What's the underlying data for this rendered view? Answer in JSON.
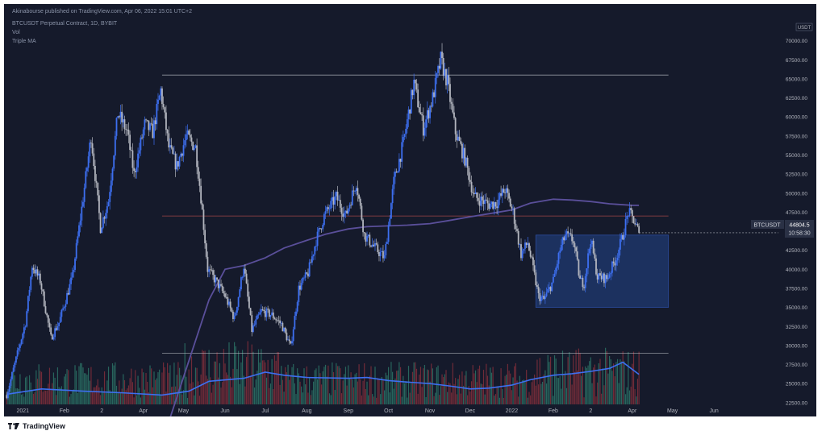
{
  "header": {
    "publisher_text": "Akinabourse published on TradingView.com, Apr 06, 2022 15:01 UTC+2",
    "symbol_line": "BTCUSDT Perpetual Contract, 1D, BYBIT",
    "indicators": [
      "Vol",
      "Triple MA"
    ]
  },
  "footer": {
    "brand": "TradingView"
  },
  "price_scale": {
    "currency": "USDT"
  },
  "price_label": {
    "symbol": "BTCUSDT",
    "price": "44804.5",
    "countdown": "10:58:30"
  },
  "colors": {
    "background": "#151a2b",
    "up_candle": "#3d6ff0",
    "down_candle": "#b2b5be",
    "ma": "#5a4f9a",
    "volume_ma": "#3d6ff0",
    "box": "#1f3a72",
    "levels": "#b2b5be",
    "resistance": "#c0504d",
    "volume_up": "#2a6e63",
    "volume_down": "#7a2e3a"
  },
  "chart_data": {
    "type": "candlestick",
    "symbol": "BTCUSDT",
    "timeframe": "1D",
    "ylim": [
      21000,
      72500
    ],
    "xlim": [
      "2020-12-18",
      "2022-06-25"
    ],
    "y_ticks": [
      "22500.00",
      "25000.00",
      "27500.00",
      "30000.00",
      "32500.00",
      "35000.00",
      "37500.00",
      "40000.00",
      "42500.00",
      "45000.00",
      "47500.00",
      "50000.00",
      "52500.00",
      "55000.00",
      "57500.00",
      "60000.00",
      "62500.00",
      "65000.00",
      "67500.00",
      "70000.00"
    ],
    "x_ticks": [
      {
        "label": "2021",
        "date": "2021-01-01"
      },
      {
        "label": "Feb",
        "date": "2021-02-01"
      },
      {
        "label": "2",
        "date": "2021-03-01"
      },
      {
        "label": "Apr",
        "date": "2021-04-01"
      },
      {
        "label": "May",
        "date": "2021-05-01"
      },
      {
        "label": "Jun",
        "date": "2021-06-01"
      },
      {
        "label": "Jul",
        "date": "2021-07-01"
      },
      {
        "label": "Aug",
        "date": "2021-08-01"
      },
      {
        "label": "Sep",
        "date": "2021-09-01"
      },
      {
        "label": "Oct",
        "date": "2021-10-01"
      },
      {
        "label": "Nov",
        "date": "2021-11-01"
      },
      {
        "label": "Dec",
        "date": "2021-12-01"
      },
      {
        "label": "2022",
        "date": "2022-01-01"
      },
      {
        "label": "Feb",
        "date": "2022-02-01"
      },
      {
        "label": "2",
        "date": "2022-03-01"
      },
      {
        "label": "Apr",
        "date": "2022-04-01"
      },
      {
        "label": "May",
        "date": "2022-05-01"
      },
      {
        "label": "Jun",
        "date": "2022-06-01"
      }
    ],
    "close_path": [
      [
        "2020-12-20",
        23500
      ],
      [
        "2021-01-03",
        33000
      ],
      [
        "2021-01-08",
        40500
      ],
      [
        "2021-01-14",
        38500
      ],
      [
        "2021-01-22",
        31000
      ],
      [
        "2021-01-28",
        33000
      ],
      [
        "2021-02-07",
        39000
      ],
      [
        "2021-02-14",
        48000
      ],
      [
        "2021-02-21",
        57500
      ],
      [
        "2021-02-28",
        45500
      ],
      [
        "2021-03-06",
        49000
      ],
      [
        "2021-03-13",
        60500
      ],
      [
        "2021-03-20",
        58000
      ],
      [
        "2021-03-25",
        52500
      ],
      [
        "2021-04-02",
        59000
      ],
      [
        "2021-04-08",
        58000
      ],
      [
        "2021-04-14",
        63500
      ],
      [
        "2021-04-20",
        56000
      ],
      [
        "2021-04-26",
        53500
      ],
      [
        "2021-05-03",
        57500
      ],
      [
        "2021-05-10",
        56000
      ],
      [
        "2021-05-14",
        49500
      ],
      [
        "2021-05-19",
        40000
      ],
      [
        "2021-05-25",
        38500
      ],
      [
        "2021-06-01",
        36500
      ],
      [
        "2021-06-08",
        33500
      ],
      [
        "2021-06-15",
        40500
      ],
      [
        "2021-06-21",
        32000
      ],
      [
        "2021-06-28",
        34500
      ],
      [
        "2021-07-06",
        34000
      ],
      [
        "2021-07-13",
        32800
      ],
      [
        "2021-07-20",
        29800
      ],
      [
        "2021-07-26",
        37500
      ],
      [
        "2021-08-02",
        39500
      ],
      [
        "2021-08-08",
        43800
      ],
      [
        "2021-08-14",
        47000
      ],
      [
        "2021-08-23",
        49500
      ],
      [
        "2021-08-30",
        47000
      ],
      [
        "2021-09-07",
        51500
      ],
      [
        "2021-09-13",
        44500
      ],
      [
        "2021-09-21",
        42800
      ],
      [
        "2021-09-28",
        41500
      ],
      [
        "2021-10-05",
        51500
      ],
      [
        "2021-10-12",
        56500
      ],
      [
        "2021-10-20",
        64500
      ],
      [
        "2021-10-27",
        58500
      ],
      [
        "2021-11-03",
        62500
      ],
      [
        "2021-11-09",
        67500
      ],
      [
        "2021-11-14",
        64500
      ],
      [
        "2021-11-20",
        58000
      ],
      [
        "2021-11-27",
        54500
      ],
      [
        "2021-12-04",
        49500
      ],
      [
        "2021-12-10",
        49000
      ],
      [
        "2021-12-15",
        48500
      ],
      [
        "2021-12-21",
        48800
      ],
      [
        "2021-12-27",
        50500
      ],
      [
        "2022-01-02",
        47500
      ],
      [
        "2022-01-08",
        42000
      ],
      [
        "2022-01-13",
        43500
      ],
      [
        "2022-01-21",
        36500
      ],
      [
        "2022-01-25",
        36000
      ],
      [
        "2022-02-01",
        38500
      ],
      [
        "2022-02-06",
        42500
      ],
      [
        "2022-02-10",
        44500
      ],
      [
        "2022-02-16",
        43800
      ],
      [
        "2022-02-21",
        38500
      ],
      [
        "2022-02-24",
        38200
      ],
      [
        "2022-03-01",
        44000
      ],
      [
        "2022-03-06",
        39000
      ],
      [
        "2022-03-13",
        38800
      ],
      [
        "2022-03-20",
        41500
      ],
      [
        "2022-03-25",
        44500
      ],
      [
        "2022-03-29",
        47500
      ],
      [
        "2022-04-02",
        46500
      ],
      [
        "2022-04-06",
        44804.5
      ]
    ],
    "ma_path": [
      [
        "2021-04-20",
        20000
      ],
      [
        "2021-05-05",
        28000
      ],
      [
        "2021-05-20",
        36000
      ],
      [
        "2021-06-01",
        40000
      ],
      [
        "2021-06-15",
        40500
      ],
      [
        "2021-07-01",
        41500
      ],
      [
        "2021-07-15",
        42800
      ],
      [
        "2021-08-01",
        43800
      ],
      [
        "2021-08-15",
        44600
      ],
      [
        "2021-09-01",
        45300
      ],
      [
        "2021-09-15",
        45600
      ],
      [
        "2021-10-01",
        45700
      ],
      [
        "2021-10-15",
        45800
      ],
      [
        "2021-11-01",
        46000
      ],
      [
        "2021-11-15",
        46400
      ],
      [
        "2021-12-01",
        46900
      ],
      [
        "2021-12-15",
        47300
      ],
      [
        "2022-01-01",
        47800
      ],
      [
        "2022-01-15",
        48700
      ],
      [
        "2022-02-01",
        49200
      ],
      [
        "2022-02-15",
        49100
      ],
      [
        "2022-03-01",
        48900
      ],
      [
        "2022-03-15",
        48600
      ],
      [
        "2022-04-01",
        48400
      ],
      [
        "2022-04-06",
        48400
      ]
    ],
    "volume_ma_path": [
      [
        "2020-12-20",
        23600
      ],
      [
        "2021-01-15",
        24300
      ],
      [
        "2021-02-15",
        24000
      ],
      [
        "2021-03-15",
        23800
      ],
      [
        "2021-04-15",
        23500
      ],
      [
        "2021-05-05",
        24000
      ],
      [
        "2021-05-20",
        25300
      ],
      [
        "2021-06-15",
        25700
      ],
      [
        "2021-07-01",
        26500
      ],
      [
        "2021-07-15",
        26100
      ],
      [
        "2021-08-01",
        25800
      ],
      [
        "2021-09-01",
        25700
      ],
      [
        "2021-09-15",
        25800
      ],
      [
        "2021-10-01",
        25400
      ],
      [
        "2021-10-15",
        25200
      ],
      [
        "2021-11-01",
        25000
      ],
      [
        "2021-11-15",
        24700
      ],
      [
        "2021-12-01",
        24300
      ],
      [
        "2021-12-15",
        24400
      ],
      [
        "2022-01-01",
        24800
      ],
      [
        "2022-01-15",
        25500
      ],
      [
        "2022-02-01",
        26100
      ],
      [
        "2022-02-15",
        26300
      ],
      [
        "2022-03-01",
        26600
      ],
      [
        "2022-03-15",
        27000
      ],
      [
        "2022-03-25",
        27800
      ],
      [
        "2022-04-06",
        26200
      ]
    ],
    "horizontal_levels": [
      {
        "name": "high-level",
        "price": 65500,
        "from": "2021-04-15",
        "to": "2022-04-28"
      },
      {
        "name": "resistance",
        "price": 47000,
        "from": "2021-04-15",
        "to": "2022-04-28"
      },
      {
        "name": "low-level",
        "price": 29000,
        "from": "2021-04-15",
        "to": "2022-04-28"
      }
    ],
    "range_box": {
      "from": "2022-01-19",
      "to": "2022-04-28",
      "top": 44500,
      "bottom": 35000
    },
    "last_price": 44804.5
  }
}
